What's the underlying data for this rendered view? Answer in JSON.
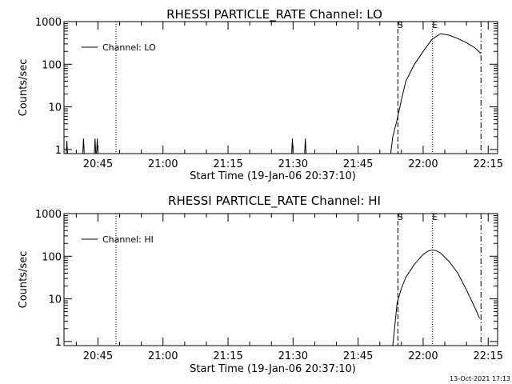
{
  "footer": {
    "timestamp": "13-Oct-2021 17:13"
  },
  "chart_data": [
    {
      "type": "line",
      "title": "RHESSI PARTICLE_RATE Channel: LO",
      "xlabel": "Start Time (19-Jan-06 20:37:10)",
      "ylabel": "Counts/sec",
      "yscale": "log",
      "ylim": [
        0.8,
        1000
      ],
      "xlim": [
        "20:37:10",
        "22:17:10"
      ],
      "x_ticks": [
        "20:45",
        "21:00",
        "21:15",
        "21:30",
        "21:45",
        "22:00",
        "22:15"
      ],
      "y_ticks": [
        "1",
        "10",
        "100",
        "1000"
      ],
      "legend": {
        "position": "top-left",
        "entries": [
          "Channel: LO"
        ]
      },
      "markers": [
        {
          "label": "",
          "time": "20:49:10",
          "style": "dotted"
        },
        {
          "label": "S",
          "time": "21:54:10",
          "style": "dashed"
        },
        {
          "label": "E",
          "time": "22:02:10",
          "style": "dotted"
        },
        {
          "label": "",
          "time": "22:13:20",
          "style": "dashdot"
        }
      ],
      "series": [
        {
          "name": "Channel: LO",
          "x": [
            "20:37:40",
            "20:37:50",
            "20:38:00",
            "20:41:30",
            "20:41:40",
            "20:41:50",
            "20:44:10",
            "20:44:20",
            "20:44:30",
            "20:44:40",
            "20:44:50",
            "20:45:00",
            "21:29:40",
            "21:29:50",
            "21:30:00",
            "21:32:40",
            "21:32:50",
            "21:33:00",
            "21:52:30",
            "21:53:00",
            "21:54:00",
            "21:55:00",
            "21:56:00",
            "21:58:00",
            "22:00:00",
            "22:02:00",
            "22:04:00",
            "22:06:00",
            "22:08:00",
            "22:10:00",
            "22:12:00",
            "22:13:00",
            "22:13:20"
          ],
          "y": [
            0.8,
            1.6,
            0.8,
            0.8,
            1.8,
            0.8,
            0.8,
            1.8,
            0.8,
            0.8,
            1.8,
            0.8,
            0.8,
            1.8,
            0.8,
            0.8,
            1.8,
            0.8,
            0.8,
            2,
            5,
            15,
            40,
            100,
            200,
            380,
            520,
            480,
            400,
            320,
            240,
            190,
            180
          ]
        }
      ]
    },
    {
      "type": "line",
      "title": "RHESSI PARTICLE_RATE Channel: HI",
      "xlabel": "Start Time (19-Jan-06 20:37:10)",
      "ylabel": "Counts/sec",
      "yscale": "log",
      "ylim": [
        0.8,
        1000
      ],
      "xlim": [
        "20:37:10",
        "22:17:10"
      ],
      "x_ticks": [
        "20:45",
        "21:00",
        "21:15",
        "21:30",
        "21:45",
        "22:00",
        "22:15"
      ],
      "y_ticks": [
        "1",
        "10",
        "100",
        "1000"
      ],
      "legend": {
        "position": "top-left",
        "entries": [
          "Channel: HI"
        ]
      },
      "markers": [
        {
          "label": "",
          "time": "20:49:10",
          "style": "dotted"
        },
        {
          "label": "S",
          "time": "21:54:10",
          "style": "dashed"
        },
        {
          "label": "E",
          "time": "22:02:10",
          "style": "dotted"
        },
        {
          "label": "",
          "time": "22:13:20",
          "style": "dashdot"
        }
      ],
      "series": [
        {
          "name": "Channel: HI",
          "x": [
            "21:53:00",
            "21:53:30",
            "21:54:00",
            "21:55:00",
            "21:56:00",
            "21:58:00",
            "22:00:00",
            "22:01:00",
            "22:02:00",
            "22:03:00",
            "22:04:00",
            "22:06:00",
            "22:08:00",
            "22:10:00",
            "22:12:00",
            "22:13:00"
          ],
          "y": [
            0.8,
            2.5,
            8,
            18,
            32,
            65,
            110,
            130,
            140,
            135,
            120,
            75,
            40,
            16,
            6,
            3.5
          ]
        }
      ]
    }
  ]
}
